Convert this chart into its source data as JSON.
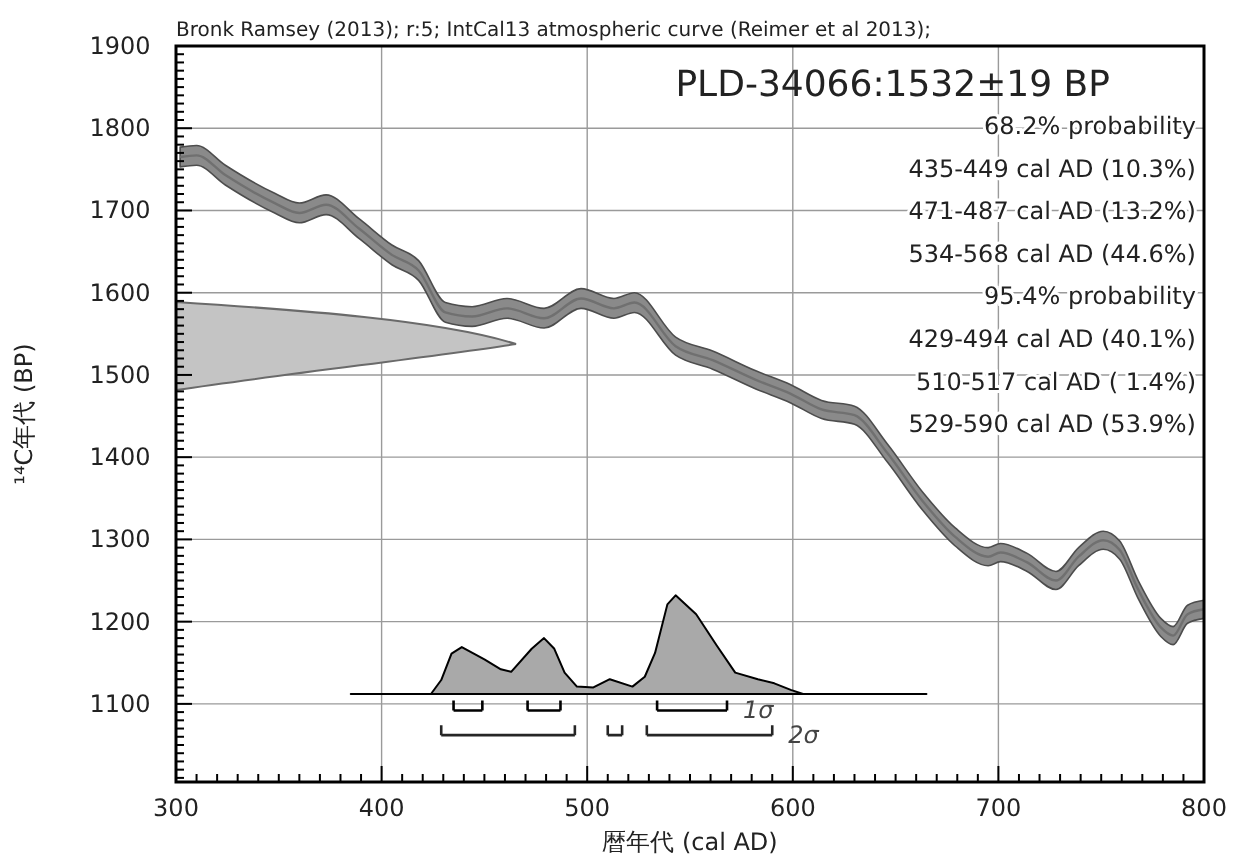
{
  "chart_data": {
    "type": "line",
    "title": "PLD-34066:1532±19 BP",
    "subtitle": "Bronk Ramsey (2013); r:5; IntCal13 atmospheric curve (Reimer et al 2013);",
    "xlabel": "暦年代 (cal AD)",
    "ylabel": "¹⁴C年代 (BP)",
    "annotations": [
      "68.2% probability",
      "435-449 cal AD (10.3%)",
      "471-487 cal AD (13.2%)",
      "534-568 cal AD (44.6%)",
      "95.4% probability",
      "429-494 cal AD (40.1%)",
      "510-517 cal AD ( 1.4%)",
      "529-590 cal AD (53.9%)"
    ],
    "xlim": [
      300,
      800
    ],
    "ylim": [
      1005,
      1900
    ],
    "grid": true,
    "tick_labels": true,
    "legend": "bottom",
    "xticks": [
      300,
      {
        "value": 310,
        "label": null
      },
      {
        "value": 320,
        "label": null
      },
      {
        "value": 330,
        "label": null
      },
      {
        "value": 340,
        "label": null
      },
      {
        "value": 350,
        "label": null
      },
      {
        "value": 360,
        "label": null
      },
      {
        "value": 370,
        "label": null
      },
      {
        "value": 380,
        "label": null
      },
      {
        "value": 390,
        "label": null
      },
      400,
      {
        "value": 410,
        "label": null
      },
      {
        "value": 420,
        "label": null
      },
      {
        "value": 430,
        "label": null
      },
      {
        "value": 440,
        "label": null
      },
      {
        "value": 450,
        "label": null
      },
      {
        "value": 460,
        "label": null
      },
      {
        "value": 470,
        "label": null
      },
      {
        "value": 480,
        "label": null
      },
      {
        "value": 490,
        "label": null
      },
      500,
      {
        "value": 510,
        "label": null
      },
      {
        "value": 520,
        "label": null
      },
      {
        "value": 530,
        "label": null
      },
      {
        "value": 540,
        "label": null
      },
      {
        "value": 550,
        "label": null
      },
      {
        "value": 560,
        "label": null
      },
      {
        "value": 570,
        "label": null
      },
      {
        "value": 580,
        "label": null
      },
      {
        "value": 590,
        "label": null
      },
      600,
      {
        "value": 610,
        "label": null
      },
      {
        "value": 620,
        "label": null
      },
      {
        "value": 630,
        "label": null
      },
      {
        "value": 640,
        "label": null
      },
      {
        "value": 650,
        "label": null
      },
      {
        "value": 660,
        "label": null
      },
      {
        "value": 670,
        "label": null
      },
      {
        "value": 680,
        "label": null
      },
      {
        "value": 690,
        "label": null
      },
      700,
      {
        "value": 710,
        "label": null
      },
      {
        "value": 720,
        "label": null
      },
      {
        "value": 730,
        "label": null
      },
      {
        "value": 740,
        "label": null
      },
      {
        "value": 750,
        "label": null
      },
      {
        "value": 760,
        "label": null
      },
      {
        "value": 770,
        "label": null
      },
      {
        "value": 780,
        "label": null
      },
      {
        "value": 790,
        "label": null
      },
      800
    ],
    "yticks": [
      {
        "value": 1010,
        "label": null
      },
      {
        "value": 1020,
        "label": null
      },
      {
        "value": 1030,
        "label": null
      },
      {
        "value": 1040,
        "label": null
      },
      {
        "value": 1050,
        "label": null
      },
      {
        "value": 1060,
        "label": null
      },
      {
        "value": 1070,
        "label": null
      },
      {
        "value": 1080,
        "label": null
      },
      {
        "value": 1090,
        "label": null
      },
      1100,
      {
        "value": 1110,
        "label": null
      },
      {
        "value": 1120,
        "label": null
      },
      {
        "value": 1130,
        "label": null
      },
      {
        "value": 1140,
        "label": null
      },
      {
        "value": 1150,
        "label": null
      },
      {
        "value": 1160,
        "label": null
      },
      {
        "value": 1170,
        "label": null
      },
      {
        "value": 1180,
        "label": null
      },
      {
        "value": 1190,
        "label": null
      },
      1200,
      {
        "value": 1210,
        "label": null
      },
      {
        "value": 1220,
        "label": null
      },
      {
        "value": 1230,
        "label": null
      },
      {
        "value": 1240,
        "label": null
      },
      {
        "value": 1250,
        "label": null
      },
      {
        "value": 1260,
        "label": null
      },
      {
        "value": 1270,
        "label": null
      },
      {
        "value": 1280,
        "label": null
      },
      {
        "value": 1290,
        "label": null
      },
      1300,
      {
        "value": 1310,
        "label": null
      },
      {
        "value": 1320,
        "label": null
      },
      {
        "value": 1330,
        "label": null
      },
      {
        "value": 1340,
        "label": null
      },
      {
        "value": 1350,
        "label": null
      },
      {
        "value": 1360,
        "label": null
      },
      {
        "value": 1370,
        "label": null
      },
      {
        "value": 1380,
        "label": null
      },
      {
        "value": 1390,
        "label": null
      },
      1400,
      {
        "value": 1410,
        "label": null
      },
      {
        "value": 1420,
        "label": null
      },
      {
        "value": 1430,
        "label": null
      },
      {
        "value": 1440,
        "label": null
      },
      {
        "value": 1450,
        "label": null
      },
      {
        "value": 1460,
        "label": null
      },
      {
        "value": 1470,
        "label": null
      },
      {
        "value": 1480,
        "label": null
      },
      {
        "value": 1490,
        "label": null
      },
      1500,
      {
        "value": 1510,
        "label": null
      },
      {
        "value": 1520,
        "label": null
      },
      {
        "value": 1530,
        "label": null
      },
      {
        "value": 1540,
        "label": null
      },
      {
        "value": 1550,
        "label": null
      },
      {
        "value": 1560,
        "label": null
      },
      {
        "value": 1570,
        "label": null
      },
      {
        "value": 1580,
        "label": null
      },
      {
        "value": 1590,
        "label": null
      },
      1600,
      {
        "value": 1610,
        "label": null
      },
      {
        "value": 1620,
        "label": null
      },
      {
        "value": 1630,
        "label": null
      },
      {
        "value": 1640,
        "label": null
      },
      {
        "value": 1650,
        "label": null
      },
      {
        "value": 1660,
        "label": null
      },
      {
        "value": 1670,
        "label": null
      },
      {
        "value": 1680,
        "label": null
      },
      {
        "value": 1690,
        "label": null
      },
      1700,
      {
        "value": 1710,
        "label": null
      },
      {
        "value": 1720,
        "label": null
      },
      {
        "value": 1730,
        "label": null
      },
      {
        "value": 1740,
        "label": null
      },
      {
        "value": 1750,
        "label": null
      },
      {
        "value": 1760,
        "label": null
      },
      {
        "value": 1770,
        "label": null
      },
      {
        "value": 1780,
        "label": null
      },
      {
        "value": 1790,
        "label": null
      },
      1800,
      {
        "value": 1810,
        "label": null
      },
      {
        "value": 1820,
        "label": null
      },
      {
        "value": 1830,
        "label": null
      },
      {
        "value": 1840,
        "label": null
      },
      {
        "value": 1850,
        "label": null
      },
      {
        "value": 1860,
        "label": null
      },
      {
        "value": 1870,
        "label": null
      },
      {
        "value": 1880,
        "label": null
      },
      {
        "value": 1890,
        "label": null
      },
      1900
    ],
    "series": [
      {
        "type": "line",
        "color": "#707070",
        "x": [
          302,
          310,
          324,
          348,
          360,
          373,
          389,
          405,
          418,
          431,
          444,
          461,
          479,
          497,
          513,
          523,
          543,
          561,
          582,
          599,
          614,
          630,
          646,
          663,
          679,
          695,
          701,
          714,
          728,
          739,
          751,
          759,
          768,
          779,
          785,
          792,
          800
        ],
        "values": [
          1765,
          1767,
          1743,
          1709,
          1697,
          1707,
          1678,
          1646,
          1627,
          1576,
          1571,
          1581,
          1569,
          1593,
          1581,
          1588,
          1535,
          1518,
          1494,
          1477,
          1458,
          1451,
          1405,
          1347,
          1303,
          1279,
          1284,
          1272,
          1250,
          1279,
          1299,
          1287,
          1239,
          1193,
          1183,
          1209,
          1215
        ],
        "lower": [
          1753,
          1755,
          1731,
          1697,
          1685,
          1695,
          1666,
          1634,
          1615,
          1564,
          1559,
          1569,
          1557,
          1581,
          1569,
          1576,
          1524,
          1507,
          1483,
          1466,
          1447,
          1440,
          1394,
          1336,
          1292,
          1268,
          1273,
          1261,
          1239,
          1268,
          1288,
          1276,
          1228,
          1182,
          1172,
          1198,
          1204
        ],
        "upper": [
          1777,
          1779,
          1755,
          1721,
          1709,
          1719,
          1690,
          1658,
          1639,
          1588,
          1583,
          1593,
          1581,
          1605,
          1593,
          1600,
          1546,
          1529,
          1505,
          1488,
          1469,
          1462,
          1416,
          1358,
          1314,
          1290,
          1295,
          1283,
          1261,
          1290,
          1310,
          1298,
          1250,
          1204,
          1194,
          1220,
          1226
        ]
      },
      {
        "type": "area",
        "color": "#a9a9a9",
        "x": [
          385,
          424,
          429,
          434,
          439,
          450,
          458,
          463,
          473,
          479,
          484,
          489,
          495,
          503,
          511,
          522,
          528,
          533,
          539,
          543,
          553,
          563,
          572,
          583,
          591,
          599,
          605,
          665
        ],
        "values": [
          1112,
          1112,
          1129,
          1161,
          1169,
          1154,
          1142,
          1139,
          1167,
          1180,
          1167,
          1138,
          1121,
          1120,
          1130,
          1121,
          1133,
          1162,
          1221,
          1232,
          1209,
          1171,
          1138,
          1130,
          1125,
          1117,
          1112,
          1112
        ]
      },
      {
        "name": "1σ",
        "color": "#000000",
        "x": [
          435,
          449,
          null,
          471,
          487,
          null,
          534,
          568
        ],
        "values": [
          1092,
          1092,
          null,
          1092,
          1092,
          null,
          1092,
          1092
        ]
      },
      {
        "name": "2σ",
        "color": "#262626",
        "x": [
          429,
          494,
          null,
          510,
          517,
          null,
          529,
          590
        ],
        "values": [
          1062,
          1062,
          null,
          1062,
          1062,
          null,
          1062,
          1062
        ]
      }
    ]
  }
}
